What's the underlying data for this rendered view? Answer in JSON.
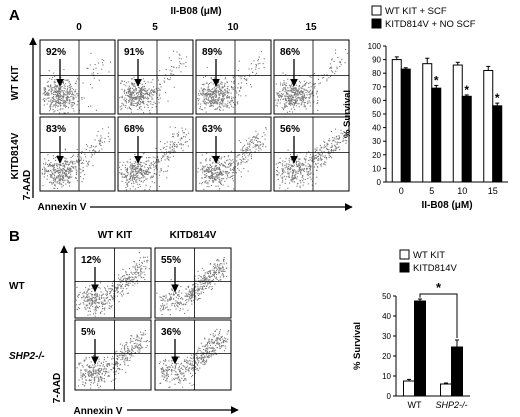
{
  "panel_a": {
    "letter": "A",
    "title": "II-B08 (μM)",
    "doses": [
      "0",
      "5",
      "10",
      "15"
    ],
    "row_labels": [
      "WT KIT",
      "KITD814V"
    ],
    "y_axis_label": "7-AAD",
    "x_axis_label": "Annexin V",
    "percents": [
      [
        "92%",
        "91%",
        "89%",
        "86%"
      ],
      [
        "83%",
        "68%",
        "63%",
        "56%"
      ]
    ]
  },
  "panel_b": {
    "letter": "B",
    "col_labels": [
      "WT KIT",
      "KITD814V"
    ],
    "row_labels": [
      "WT",
      "SHP2-/-"
    ],
    "y_axis_label": "7-AAD",
    "x_axis_label": "Annexin V",
    "percents": [
      [
        "12%",
        "55%"
      ],
      [
        "5%",
        "36%"
      ]
    ]
  },
  "chart_data": [
    {
      "type": "bar",
      "categories": [
        "0",
        "5",
        "10",
        "15"
      ],
      "series": [
        {
          "name": "WT KIT + SCF",
          "values": [
            90,
            87,
            86,
            82
          ],
          "errors": [
            2,
            4,
            2,
            3
          ],
          "color": "#ffffff"
        },
        {
          "name": "KITD814V + NO SCF",
          "values": [
            83,
            69,
            63,
            56
          ],
          "errors": [
            1,
            2,
            1,
            2
          ],
          "color": "#000000"
        }
      ],
      "title": "",
      "xlabel": "II-B08 (μM)",
      "ylabel": "% Survival",
      "ylim": [
        0,
        100
      ],
      "yticks": [
        0,
        10,
        20,
        30,
        40,
        50,
        60,
        70,
        80,
        90,
        100
      ],
      "significance_marker": "*",
      "significant_categories": [
        "5",
        "10",
        "15"
      ],
      "legend_position": "top"
    },
    {
      "type": "bar",
      "categories": [
        "WT",
        "SHP2-/-"
      ],
      "series": [
        {
          "name": "WT KIT",
          "values": [
            7.5,
            6
          ],
          "errors": [
            0.8,
            0.5
          ],
          "color": "#ffffff"
        },
        {
          "name": "KITD814V",
          "values": [
            47.5,
            24.5
          ],
          "errors": [
            1.0,
            3.5
          ],
          "color": "#000000"
        }
      ],
      "title": "",
      "xlabel": "",
      "ylabel": "% Survival",
      "ylim": [
        0,
        50
      ],
      "yticks": [
        0,
        10,
        20,
        30,
        40,
        50
      ],
      "significance_marker": "*",
      "legend_position": "top"
    }
  ]
}
